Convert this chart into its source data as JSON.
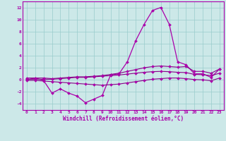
{
  "xlabel": "Windchill (Refroidissement éolien,°C)",
  "x": [
    0,
    1,
    2,
    3,
    4,
    5,
    6,
    7,
    8,
    9,
    10,
    11,
    12,
    13,
    14,
    15,
    16,
    17,
    18,
    19,
    20,
    21,
    22,
    23
  ],
  "line1": [
    0.0,
    0.3,
    -0.1,
    -2.2,
    -1.5,
    -2.2,
    -2.7,
    -3.8,
    -3.2,
    -2.6,
    0.8,
    1.0,
    3.0,
    6.5,
    9.2,
    11.5,
    12.0,
    9.2,
    3.0,
    2.5,
    1.0,
    1.0,
    0.4,
    1.8
  ],
  "line2": [
    0.3,
    0.3,
    0.3,
    0.2,
    0.3,
    0.4,
    0.5,
    0.5,
    0.6,
    0.7,
    0.9,
    1.1,
    1.4,
    1.7,
    2.0,
    2.2,
    2.3,
    2.2,
    2.1,
    2.2,
    1.4,
    1.4,
    1.1,
    1.8
  ],
  "line3": [
    0.1,
    0.1,
    0.1,
    0.1,
    0.2,
    0.3,
    0.4,
    0.4,
    0.5,
    0.6,
    0.7,
    0.8,
    0.95,
    1.1,
    1.25,
    1.35,
    1.4,
    1.35,
    1.25,
    1.2,
    0.9,
    0.85,
    0.7,
    1.1
  ],
  "line4": [
    -0.1,
    -0.1,
    -0.2,
    -0.3,
    -0.4,
    -0.5,
    -0.6,
    -0.7,
    -0.8,
    -0.9,
    -0.8,
    -0.7,
    -0.5,
    -0.3,
    -0.1,
    0.1,
    0.2,
    0.3,
    0.3,
    0.2,
    0.05,
    0.0,
    -0.15,
    0.3
  ],
  "color_main": "#aa00aa",
  "color_dark": "#880088",
  "bg_color": "#cce8e8",
  "grid_color": "#99cccc",
  "ylim": [
    -5,
    13
  ],
  "yticks": [
    -4,
    -2,
    0,
    2,
    4,
    6,
    8,
    10,
    12
  ],
  "xticks": [
    0,
    1,
    2,
    3,
    4,
    5,
    6,
    7,
    8,
    9,
    10,
    11,
    12,
    13,
    14,
    15,
    16,
    17,
    18,
    19,
    20,
    21,
    22,
    23
  ]
}
